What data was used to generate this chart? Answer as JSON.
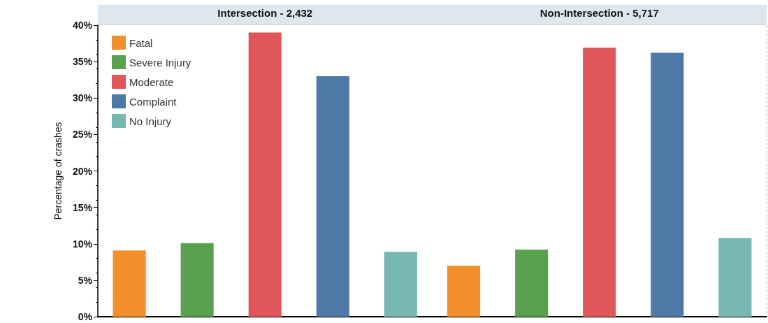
{
  "chart_data": {
    "type": "bar",
    "ylabel": "Percentage of crashes",
    "categories": [
      "Intersection - 2,432",
      "Non-Intersection - 5,717"
    ],
    "series": [
      {
        "name": "Fatal",
        "color": "#f28e2b",
        "values": [
          9.1,
          7.0
        ]
      },
      {
        "name": "Severe Injury",
        "color": "#59a14f",
        "values": [
          10.1,
          9.2
        ]
      },
      {
        "name": "Moderate",
        "color": "#e15759",
        "values": [
          39.0,
          36.9
        ]
      },
      {
        "name": "Complaint",
        "color": "#4e79a7",
        "values": [
          33.0,
          36.2
        ]
      },
      {
        "name": "No Injury",
        "color": "#76b7b2",
        "values": [
          8.9,
          10.8
        ]
      }
    ],
    "ylim": [
      0,
      40
    ],
    "yticks": [
      {
        "value": 0,
        "label": "0%"
      },
      {
        "value": 5,
        "label": "5%"
      },
      {
        "value": 10,
        "label": "10%"
      },
      {
        "value": 15,
        "label": "15%"
      },
      {
        "value": 20,
        "label": "20%"
      },
      {
        "value": 25,
        "label": "25%"
      },
      {
        "value": 30,
        "label": "30%"
      },
      {
        "value": 35,
        "label": "35%"
      },
      {
        "value": 40,
        "label": "40%"
      }
    ],
    "legend": "top left",
    "grid": false
  }
}
